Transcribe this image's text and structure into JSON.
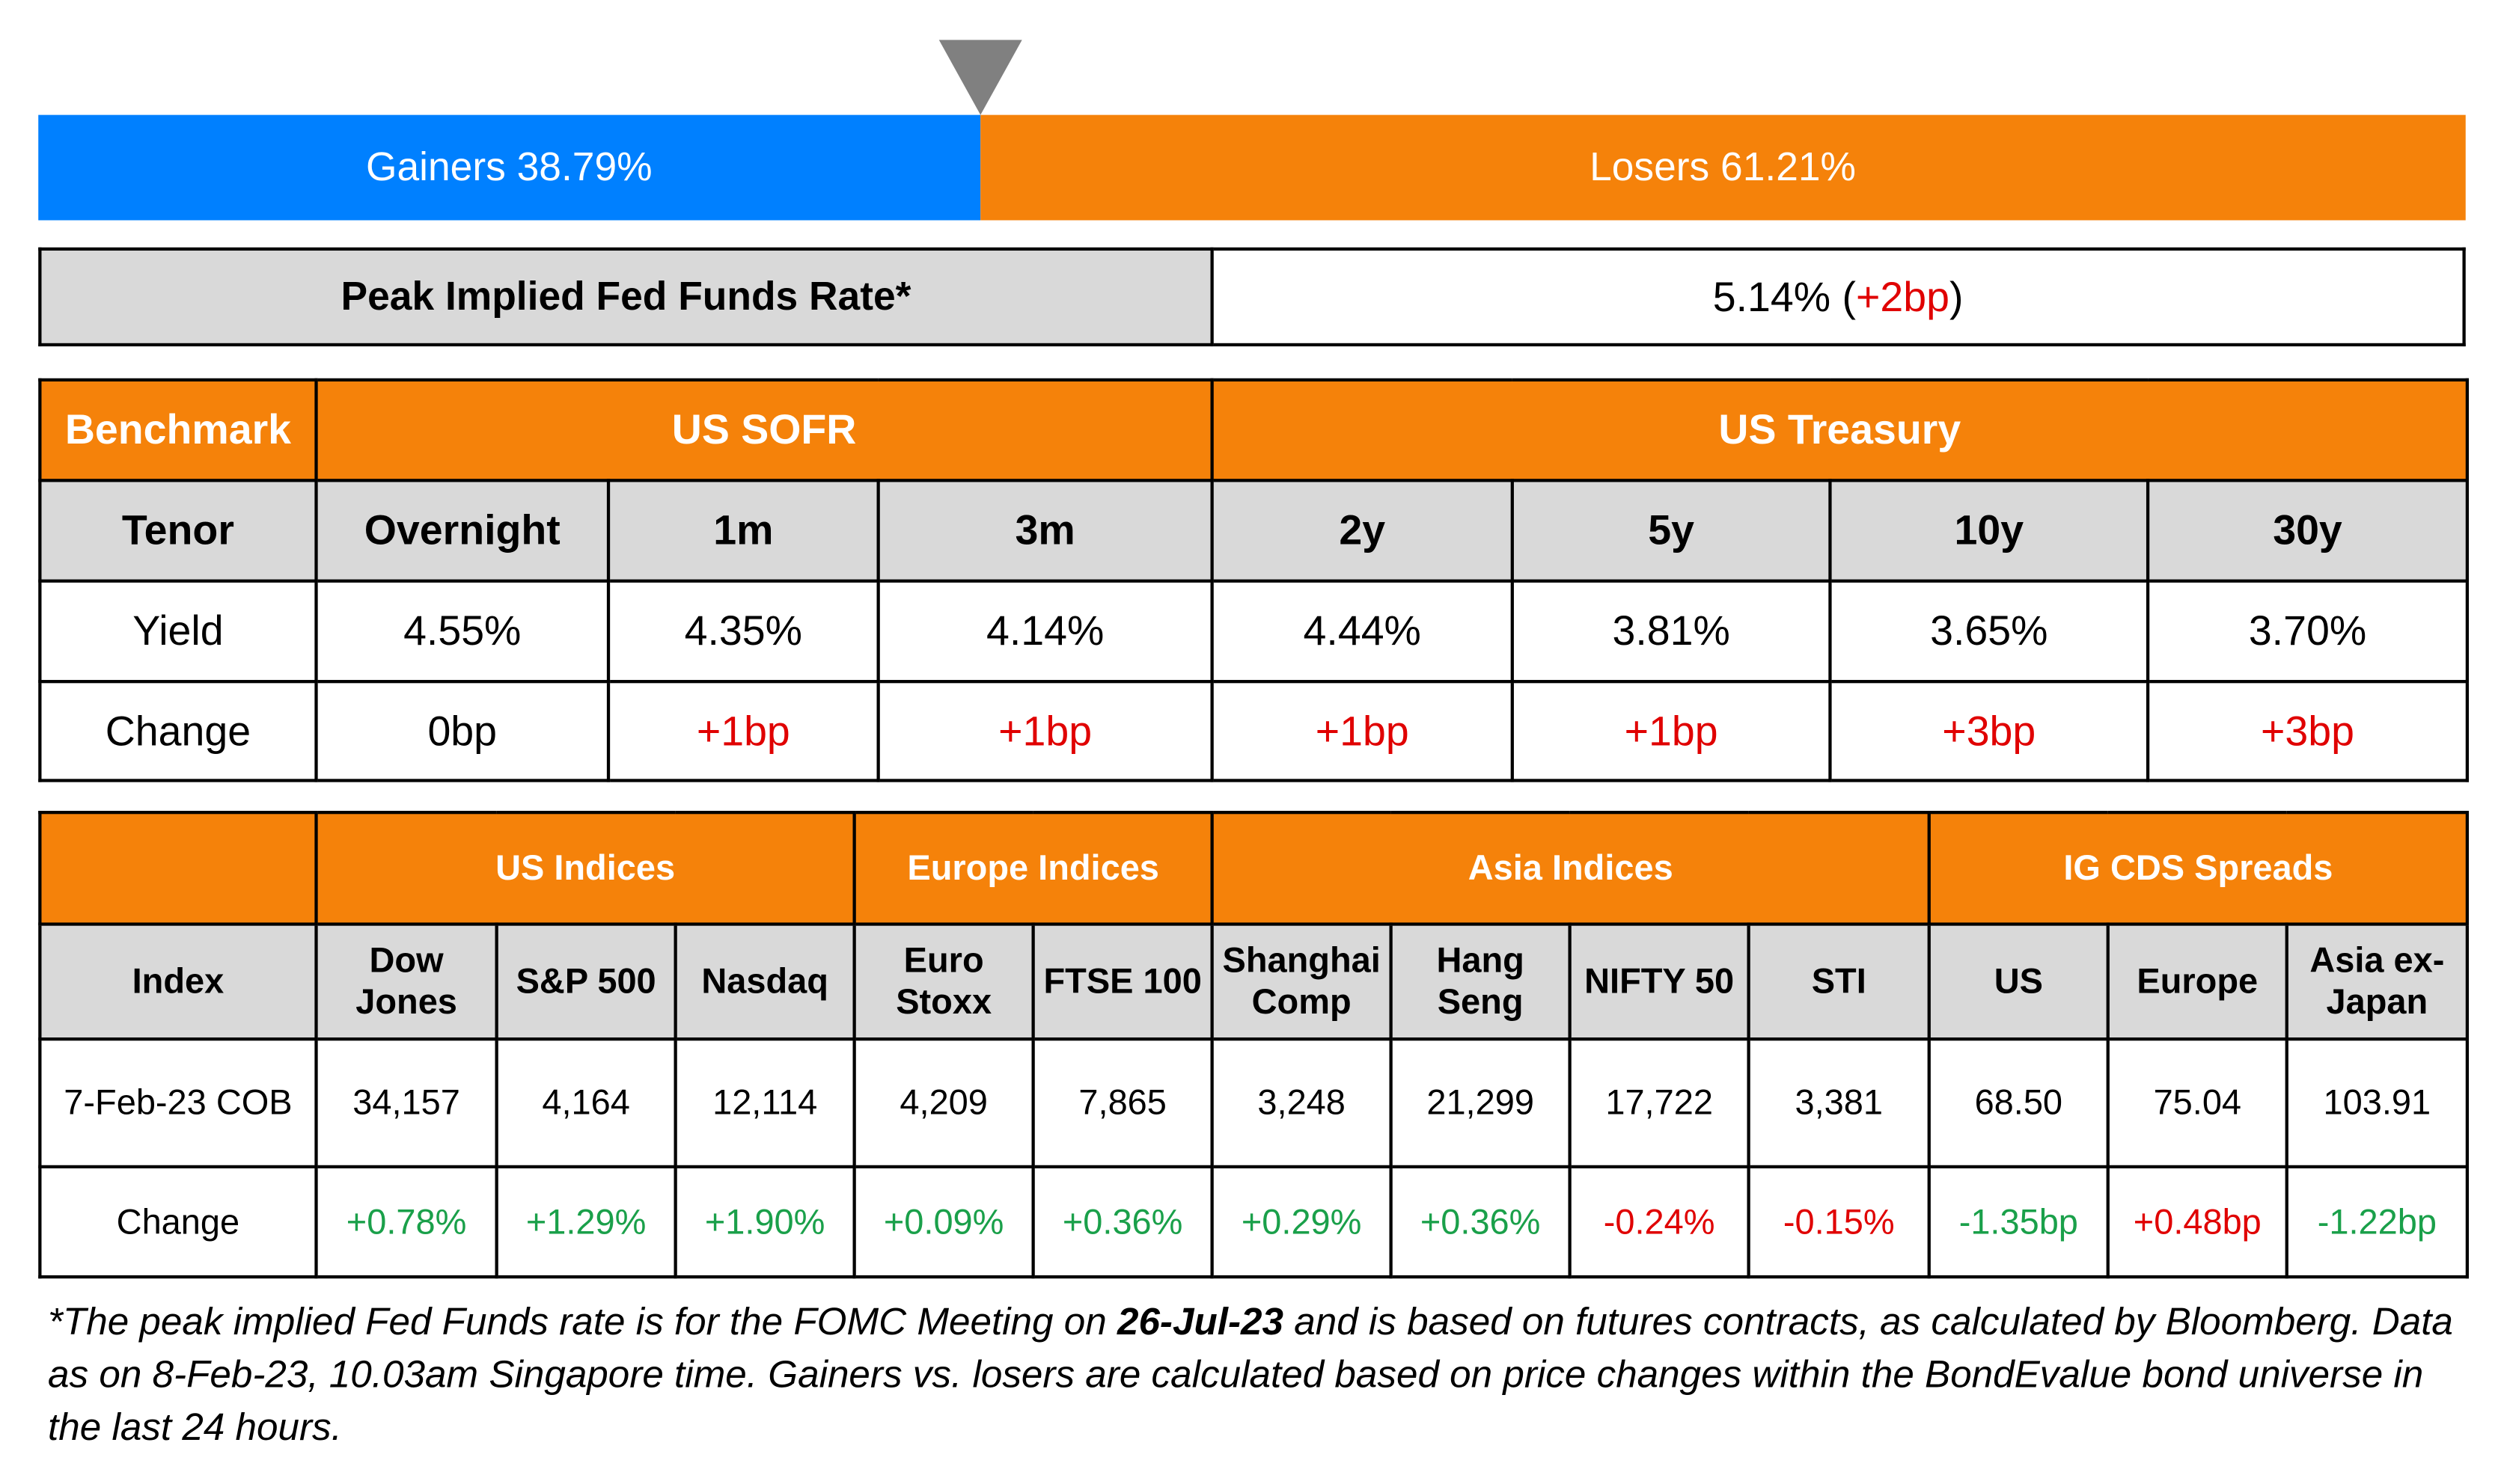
{
  "breadth": {
    "gainers": {
      "label": "Gainers 38.79%",
      "value": 38.79,
      "color": "#0080ff"
    },
    "losers": {
      "label": "Losers 61.21%",
      "value": 61.21,
      "color": "#f5820a"
    }
  },
  "fed_funds": {
    "label": "Peak Implied Fed Funds Rate*",
    "value_parts": [
      {
        "text": "5.14% ("
      },
      {
        "text": "+2bp",
        "color": "#e00000"
      },
      {
        "text": ")"
      }
    ]
  },
  "rates_table": {
    "rows": [
      [
        {
          "text": "Benchmark"
        },
        {
          "text": "US SOFR",
          "colspan": 3
        },
        {
          "text": "US Treasury",
          "colspan": 4
        }
      ],
      [
        "Tenor",
        "Overnight",
        "1m",
        "3m",
        "2y",
        "5y",
        "10y",
        "30y"
      ],
      [
        "Yield",
        "4.55%",
        "4.35%",
        "4.14%",
        "4.44%",
        "3.81%",
        "3.65%",
        "3.70%"
      ],
      [
        "Change",
        "0bp",
        {
          "text": "+1bp",
          "color": "#e00000"
        },
        {
          "text": "+1bp",
          "color": "#e00000"
        },
        {
          "text": "+1bp",
          "color": "#e00000"
        },
        {
          "text": "+1bp",
          "color": "#e00000"
        },
        {
          "text": "+3bp",
          "color": "#e00000"
        },
        {
          "text": "+3bp",
          "color": "#e00000"
        }
      ]
    ]
  },
  "indices_table": {
    "rows": [
      [
        null,
        {
          "text": "US Indices",
          "colspan": 3
        },
        {
          "text": "Europe Indices",
          "colspan": 2
        },
        {
          "text": "Asia Indices",
          "colspan": 4
        },
        {
          "text": "IG CDS Spreads",
          "colspan": 3
        }
      ],
      [
        "Index",
        "Dow Jones",
        "S&P 500",
        "Nasdaq",
        "Euro Stoxx",
        "FTSE 100",
        "Shanghai Comp",
        "Hang Seng",
        "NIFTY 50",
        "STI",
        "US",
        "Europe",
        "Asia ex-Japan"
      ],
      [
        "7-Feb-23 COB",
        "34,157",
        "4,164",
        "12,114",
        "4,209",
        "7,865",
        "3,248",
        "21,299",
        "17,722",
        "3,381",
        "68.50",
        "75.04",
        "103.91"
      ],
      [
        "Change",
        {
          "text": "+0.78%",
          "color": "#1aa04a"
        },
        {
          "text": "+1.29%",
          "color": "#1aa04a"
        },
        {
          "text": "+1.90%",
          "color": "#1aa04a"
        },
        {
          "text": "+0.09%",
          "color": "#1aa04a"
        },
        {
          "text": "+0.36%",
          "color": "#1aa04a"
        },
        {
          "text": "+0.29%",
          "color": "#1aa04a"
        },
        {
          "text": "+0.36%",
          "color": "#1aa04a"
        },
        {
          "text": "-0.24%",
          "color": "#e00000"
        },
        {
          "text": "-0.15%",
          "color": "#e00000"
        },
        {
          "text": "-1.35bp",
          "color": "#1aa04a"
        },
        {
          "text": "+0.48bp",
          "color": "#e00000"
        },
        {
          "text": "-1.22bp",
          "color": "#1aa04a"
        }
      ]
    ]
  },
  "footnote": [
    {
      "text": "*The peak implied Fed Funds rate is for the FOMC Meeting on "
    },
    {
      "text": "26-Jul-23",
      "bold": true
    },
    {
      "text": " and is based on futures contracts, as calculated by Bloomberg. Data as on 8-Feb-23, 10.03am Singapore time. Gainers vs. losers are calculated based on price changes within the BondEvalue bond universe in the last 24 hours."
    }
  ]
}
